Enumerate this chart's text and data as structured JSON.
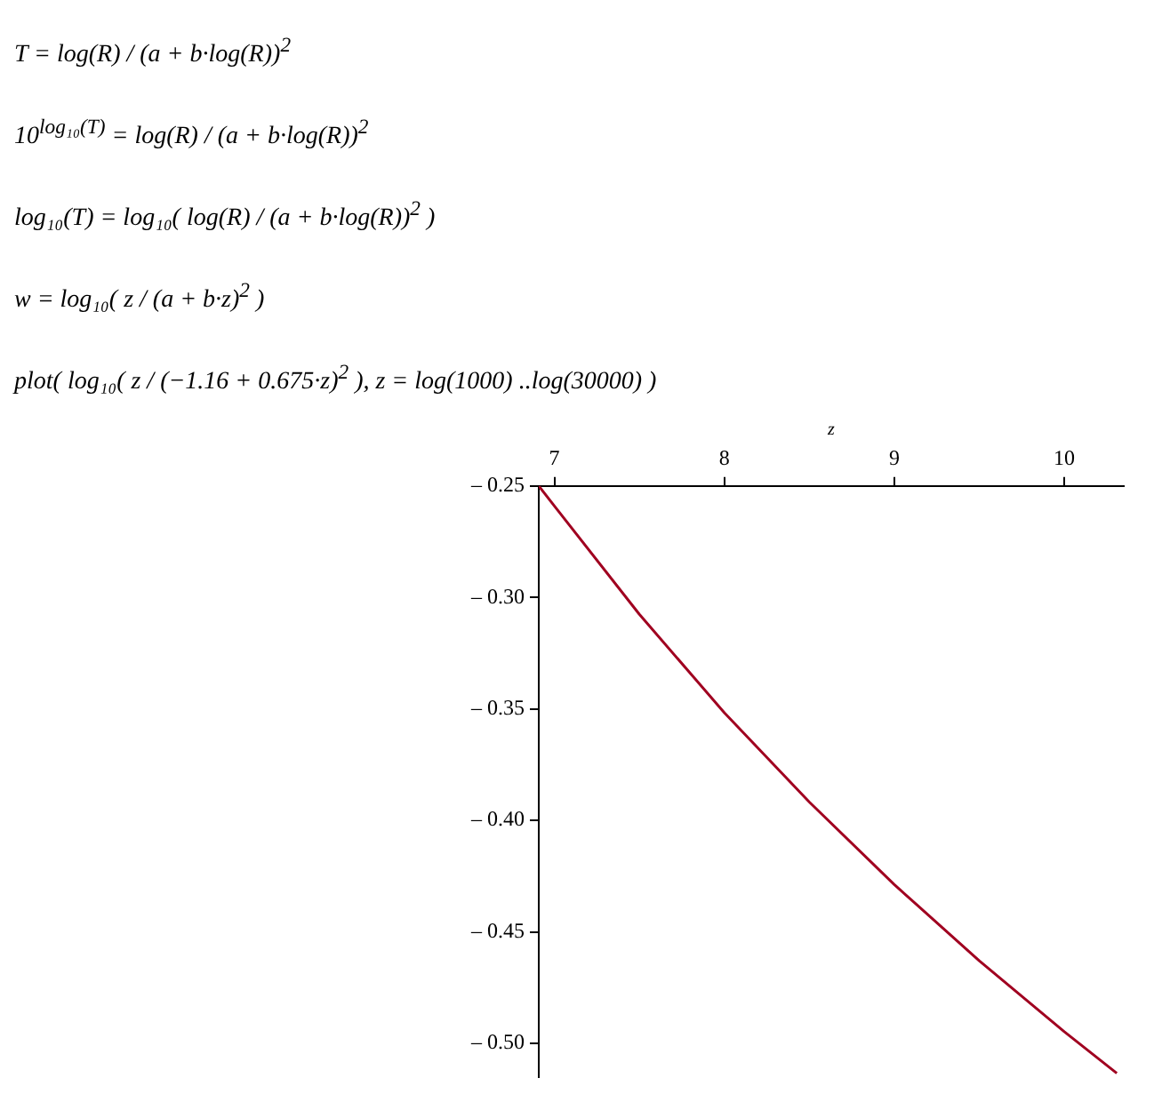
{
  "chart_data": {
    "type": "line",
    "xlabel": "z",
    "annotations": [
      "T = log(R) / (a + b·log(R))$^{2}$",
      "10$^{log₁₀(T)}$ = log(R) / (a + b·log(R))$^{2}$",
      "log₁₀(T) = log₁₀( log(R) / (a + b·log(R))$^{2}$ )",
      "w = log₁₀( z / (a + b·z)$^{2}$ )",
      "plot( log₁₀( z / (−1.16 + 0.675·z)$^{2}$ ), z = log(1000) ..log(30000) )"
    ],
    "x": [
      6.908,
      7,
      7.5,
      8,
      8.5,
      9,
      9.5,
      10,
      10.309
    ],
    "series": [
      {
        "color": "#a00020",
        "values": [
          -0.25,
          -0.259,
          -0.3076,
          -0.3517,
          -0.3918,
          -0.4288,
          -0.463,
          -0.4948,
          -0.5134
        ]
      }
    ],
    "xlim": [
      6.908,
      10.35
    ],
    "xticks": [
      7,
      8,
      9,
      10
    ],
    "ylim": [
      -0.515,
      -0.25
    ],
    "yticks": [
      {
        "value": -0.25,
        "label": "– 0.25"
      },
      {
        "value": -0.3,
        "label": "– 0.30"
      },
      {
        "value": -0.35,
        "label": "– 0.35"
      },
      {
        "value": -0.4,
        "label": "– 0.40"
      },
      {
        "value": -0.45,
        "label": "– 0.45"
      },
      {
        "value": -0.5,
        "label": "– 0.50"
      }
    ],
    "grid": false,
    "legend": false,
    "marker": "none",
    "line_style": "solid"
  }
}
